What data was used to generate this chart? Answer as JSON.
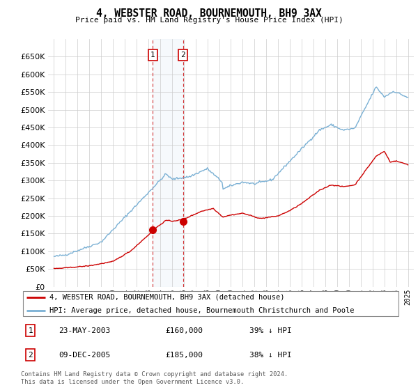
{
  "title": "4, WEBSTER ROAD, BOURNEMOUTH, BH9 3AX",
  "subtitle": "Price paid vs. HM Land Registry's House Price Index (HPI)",
  "legend_line1": "4, WEBSTER ROAD, BOURNEMOUTH, BH9 3AX (detached house)",
  "legend_line2": "HPI: Average price, detached house, Bournemouth Christchurch and Poole",
  "transaction1_date": "23-MAY-2003",
  "transaction1_price": "£160,000",
  "transaction1_hpi": "39% ↓ HPI",
  "transaction2_date": "09-DEC-2005",
  "transaction2_price": "£185,000",
  "transaction2_hpi": "38% ↓ HPI",
  "footer": "Contains HM Land Registry data © Crown copyright and database right 2024.\nThis data is licensed under the Open Government Licence v3.0.",
  "red_color": "#cc0000",
  "blue_color": "#7ab0d4",
  "ylim": [
    0,
    700000
  ],
  "yticks": [
    0,
    50000,
    100000,
    150000,
    200000,
    250000,
    300000,
    350000,
    400000,
    450000,
    500000,
    550000,
    600000,
    650000
  ],
  "xmin": 1994.5,
  "xmax": 2025.5,
  "transaction1_x": 2003.38,
  "transaction1_y": 160000,
  "transaction2_x": 2005.93,
  "transaction2_y": 185000
}
